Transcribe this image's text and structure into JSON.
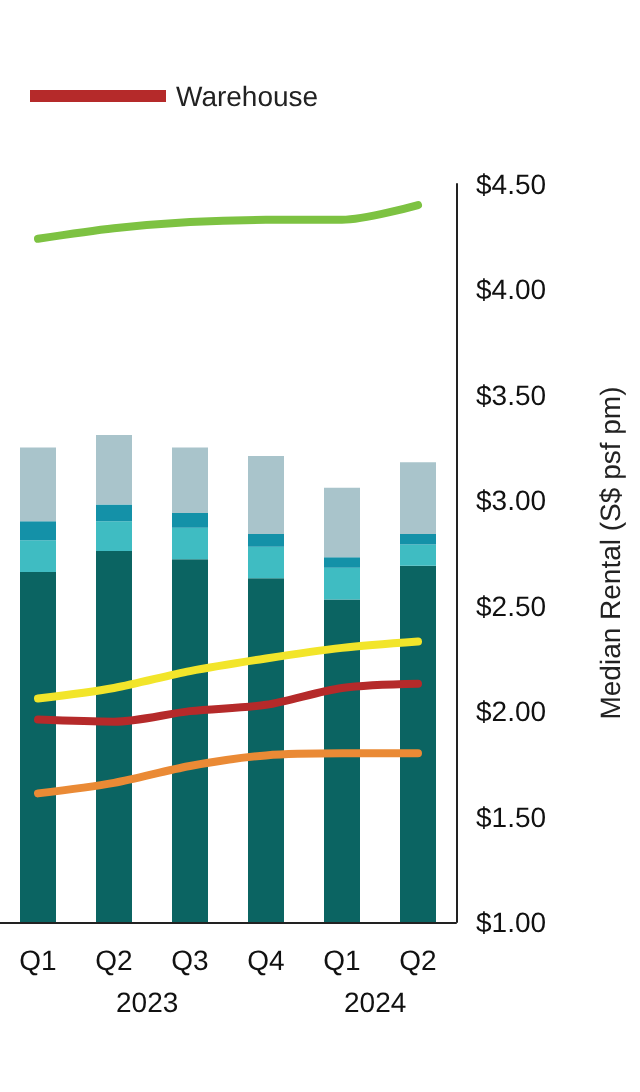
{
  "chart_data": {
    "type": "bar",
    "legend": "top left",
    "ylabel": "Median Rental (S$ psf pm)",
    "categories": [
      "Q1",
      "Q2",
      "Q3",
      "Q4",
      "Q1",
      "Q2"
    ],
    "annotations": [
      "2023",
      "2024"
    ],
    "ylim": [
      1,
      4.5
    ],
    "yticks": [
      {
        "value": 1,
        "label": "$1.00"
      },
      {
        "value": 1.5,
        "label": "$1.50"
      },
      {
        "value": 2,
        "label": "$2.00"
      },
      {
        "value": 2.5,
        "label": "$2.50"
      },
      {
        "value": 3,
        "label": "$3.00"
      },
      {
        "value": 3.5,
        "label": "$3.50"
      },
      {
        "value": 4,
        "label": "$4.00"
      },
      {
        "value": 4.5,
        "label": "$4.50"
      }
    ],
    "series": [
      {
        "color": "#0b6462",
        "values": [
          1.66,
          1.76,
          1.72,
          1.63,
          1.53,
          1.69
        ],
        "base": [
          1,
          1,
          1,
          1,
          1,
          1
        ]
      },
      {
        "color": "#3fbcc2",
        "values": [
          0.15,
          0.14,
          0.15,
          0.15,
          0.15,
          0.1
        ],
        "base": [
          2.66,
          2.76,
          2.72,
          2.63,
          2.53,
          2.69
        ]
      },
      {
        "color": "#1491a8",
        "values": [
          0.09,
          0.08,
          0.07,
          0.06,
          0.05,
          0.05
        ],
        "base": [
          2.81,
          2.9,
          2.87,
          2.78,
          2.68,
          2.79
        ]
      },
      {
        "color": "#a9c4cb",
        "values": [
          0.35,
          0.33,
          0.31,
          0.37,
          0.33,
          0.34
        ],
        "base": [
          2.9,
          2.98,
          2.94,
          2.84,
          2.73,
          2.84
        ]
      },
      {
        "type": "line",
        "color": "#7dc242",
        "values": [
          4.24,
          4.29,
          4.32,
          4.33,
          4.33,
          4.4
        ]
      },
      {
        "type": "line",
        "color": "#f2e52a",
        "values": [
          2.06,
          2.11,
          2.19,
          2.25,
          2.3,
          2.33
        ]
      },
      {
        "type": "line",
        "name": "Warehouse",
        "color": "#b52a2a",
        "values": [
          1.96,
          1.95,
          2.0,
          2.03,
          2.11,
          2.13
        ]
      },
      {
        "type": "line",
        "color": "#ea8a35",
        "values": [
          1.61,
          1.66,
          1.74,
          1.79,
          1.8,
          1.8
        ]
      }
    ]
  }
}
